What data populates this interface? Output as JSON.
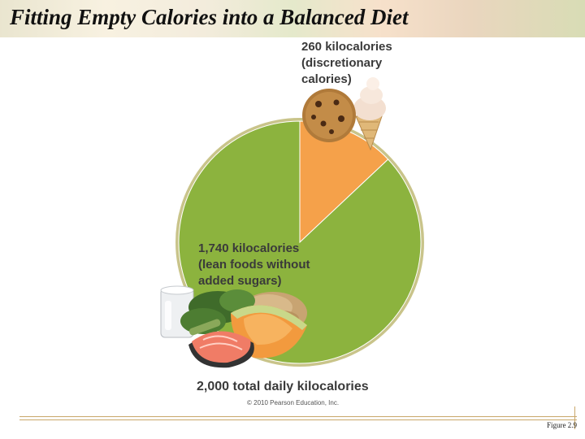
{
  "page": {
    "title": "Fitting Empty Calories into a Balanced Diet",
    "figure_label": "Figure 2.9",
    "copyright": "© 2010 Pearson Education, Inc."
  },
  "chart_data": {
    "type": "pie",
    "title": "",
    "total_label": "2,000 total daily kilocalories",
    "slices": [
      {
        "value": 260,
        "label_lines": [
          "260 kilocalories",
          "(discretionary",
          "calories)"
        ],
        "color": "#f5a14a"
      },
      {
        "value": 1740,
        "label_lines": [
          "1,740 kilocalories",
          "(lean foods without",
          "added sugars)"
        ],
        "color": "#8cb33e"
      }
    ],
    "ring_color": "#c9c48a",
    "legend": "none",
    "grid": false
  },
  "icons": {
    "treat": [
      "cookie-icon",
      "ice-cream-cone-icon"
    ],
    "healthy": [
      "milk-glass-icon",
      "broccoli-icon",
      "salmon-steak-icon",
      "cantaloupe-icon",
      "brown-rice-icon"
    ]
  }
}
